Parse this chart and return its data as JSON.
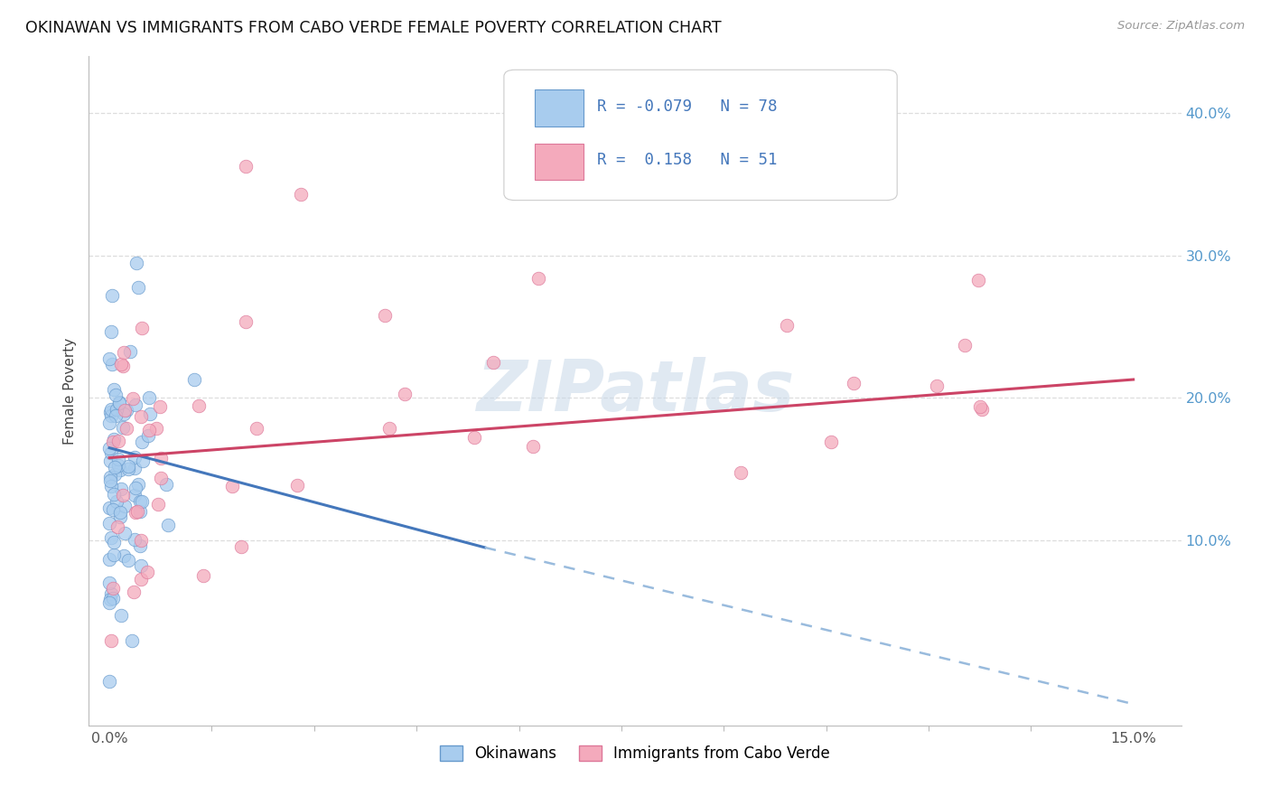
{
  "title": "OKINAWAN VS IMMIGRANTS FROM CABO VERDE FEMALE POVERTY CORRELATION CHART",
  "source": "Source: ZipAtlas.com",
  "ylabel": "Female Poverty",
  "xlim_min": -0.003,
  "xlim_max": 0.157,
  "ylim_min": -0.03,
  "ylim_max": 0.44,
  "legend_R1": "-0.079",
  "legend_N1": "78",
  "legend_R2": "0.158",
  "legend_N2": "51",
  "color_blue_fill": "#A8CCEE",
  "color_blue_edge": "#6699CC",
  "color_pink_fill": "#F4AABC",
  "color_pink_edge": "#DD7799",
  "color_trend_blue": "#4477BB",
  "color_trend_pink": "#CC4466",
  "color_trend_blue_dash": "#99BBDD",
  "watermark_color": "#C8D8E8",
  "grid_color": "#DDDDDD",
  "right_tick_color": "#5599CC"
}
